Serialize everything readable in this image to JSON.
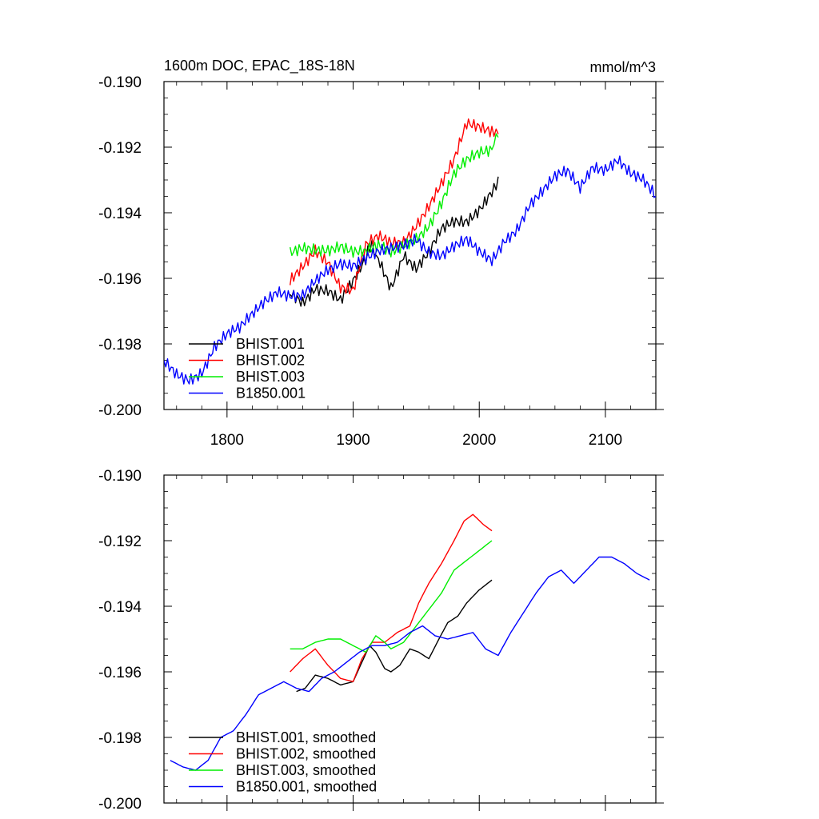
{
  "chart_data": [
    {
      "type": "line",
      "title": "1600m DOC, EPAC_18S-18N",
      "units": "mmol/m^3",
      "xlim": [
        1750,
        2140
      ],
      "ylim": [
        -0.2,
        -0.19
      ],
      "x_ticks": [
        1800,
        1900,
        2000,
        2100
      ],
      "x_tick_labels": [
        "1800",
        "1900",
        "2000",
        "2100"
      ],
      "y_ticks": [
        -0.2,
        -0.198,
        -0.196,
        -0.194,
        -0.192,
        -0.19
      ],
      "y_tick_labels": [
        "-0.200",
        "-0.198",
        "-0.196",
        "-0.194",
        "-0.192",
        "-0.190"
      ],
      "legend_position": "bottom-left",
      "series": [
        {
          "name": "BHIST.001",
          "color": "#000000",
          "x": [
            1850,
            1860,
            1870,
            1880,
            1890,
            1900,
            1910,
            1915,
            1920,
            1930,
            1940,
            1950,
            1960,
            1970,
            1980,
            1990,
            2000,
            2010,
            2015
          ],
          "y": [
            -0.1965,
            -0.1967,
            -0.1962,
            -0.1963,
            -0.1967,
            -0.1962,
            -0.1955,
            -0.1949,
            -0.1954,
            -0.1962,
            -0.1952,
            -0.1957,
            -0.1953,
            -0.1946,
            -0.1943,
            -0.1942,
            -0.1938,
            -0.1933,
            -0.1929
          ]
        },
        {
          "name": "BHIST.002",
          "color": "#ff0000",
          "x": [
            1850,
            1860,
            1870,
            1880,
            1890,
            1900,
            1910,
            1920,
            1930,
            1940,
            1950,
            1960,
            1970,
            1980,
            1990,
            2000,
            2010,
            2015
          ],
          "y": [
            -0.1962,
            -0.1957,
            -0.1951,
            -0.1954,
            -0.1962,
            -0.1964,
            -0.1951,
            -0.1948,
            -0.1949,
            -0.1948,
            -0.1943,
            -0.1938,
            -0.1932,
            -0.1925,
            -0.1913,
            -0.1913,
            -0.1914,
            -0.1916
          ]
        },
        {
          "name": "BHIST.003",
          "color": "#00ee00",
          "x": [
            1850,
            1860,
            1870,
            1880,
            1890,
            1900,
            1910,
            1920,
            1930,
            1940,
            1950,
            1960,
            1970,
            1980,
            1990,
            2000,
            2010,
            2015
          ],
          "y": [
            -0.1953,
            -0.1952,
            -0.1952,
            -0.1951,
            -0.1949,
            -0.1951,
            -0.1952,
            -0.1951,
            -0.1953,
            -0.195,
            -0.1947,
            -0.1943,
            -0.1937,
            -0.1929,
            -0.1925,
            -0.1922,
            -0.192,
            -0.1917
          ]
        },
        {
          "name": "B1850.001",
          "color": "#0000ff",
          "x": [
            1750,
            1760,
            1770,
            1780,
            1790,
            1800,
            1810,
            1820,
            1830,
            1840,
            1850,
            1860,
            1870,
            1880,
            1890,
            1900,
            1910,
            1920,
            1930,
            1940,
            1950,
            1960,
            1970,
            1980,
            1990,
            2000,
            2010,
            2020,
            2030,
            2040,
            2050,
            2060,
            2070,
            2080,
            2090,
            2100,
            2110,
            2120,
            2130,
            2140
          ],
          "y": [
            -0.1986,
            -0.1989,
            -0.199,
            -0.1988,
            -0.1981,
            -0.1978,
            -0.1976,
            -0.1971,
            -0.1966,
            -0.1963,
            -0.1965,
            -0.1966,
            -0.1962,
            -0.1958,
            -0.1955,
            -0.1955,
            -0.1953,
            -0.1952,
            -0.1952,
            -0.1951,
            -0.1948,
            -0.1951,
            -0.1952,
            -0.195,
            -0.1949,
            -0.1953,
            -0.1955,
            -0.1948,
            -0.1944,
            -0.1937,
            -0.1934,
            -0.193,
            -0.1928,
            -0.1932,
            -0.1925,
            -0.1926,
            -0.1924,
            -0.1929,
            -0.1931,
            -0.1935
          ]
        }
      ]
    },
    {
      "type": "line",
      "xlim": [
        1750,
        2140
      ],
      "ylim": [
        -0.2,
        -0.19
      ],
      "x_ticks": [
        1800,
        1900,
        2000,
        2100
      ],
      "y_ticks": [
        -0.2,
        -0.198,
        -0.196,
        -0.194,
        -0.192,
        -0.19
      ],
      "y_tick_labels": [
        "-0.200",
        "-0.198",
        "-0.196",
        "-0.194",
        "-0.192",
        "-0.190"
      ],
      "legend_position": "bottom-left",
      "series": [
        {
          "name": "BHIST.001, smoothed",
          "color": "#000000",
          "x": [
            1855,
            1862,
            1870,
            1880,
            1890,
            1900,
            1907,
            1913,
            1918,
            1925,
            1930,
            1937,
            1945,
            1952,
            1960,
            1968,
            1975,
            1983,
            1990,
            2000,
            2010
          ],
          "y": [
            -0.1966,
            -0.1965,
            -0.1961,
            -0.1962,
            -0.1964,
            -0.1963,
            -0.1957,
            -0.1952,
            -0.1954,
            -0.1959,
            -0.196,
            -0.1958,
            -0.1953,
            -0.1954,
            -0.1956,
            -0.195,
            -0.1945,
            -0.1943,
            -0.1939,
            -0.1935,
            -0.1932
          ]
        },
        {
          "name": "BHIST.002, smoothed",
          "color": "#ff0000",
          "x": [
            1850,
            1860,
            1870,
            1880,
            1890,
            1900,
            1907,
            1915,
            1925,
            1935,
            1945,
            1952,
            1960,
            1970,
            1980,
            1988,
            1995,
            2003,
            2010
          ],
          "y": [
            -0.196,
            -0.1956,
            -0.1953,
            -0.1958,
            -0.1962,
            -0.1963,
            -0.1956,
            -0.1951,
            -0.1951,
            -0.1948,
            -0.1946,
            -0.1939,
            -0.1933,
            -0.1927,
            -0.192,
            -0.1914,
            -0.1912,
            -0.1915,
            -0.1917
          ]
        },
        {
          "name": "BHIST.003, smoothed",
          "color": "#00ee00",
          "x": [
            1850,
            1860,
            1870,
            1880,
            1890,
            1900,
            1910,
            1918,
            1925,
            1930,
            1940,
            1950,
            1960,
            1970,
            1980,
            1990,
            2000,
            2010
          ],
          "y": [
            -0.1953,
            -0.1953,
            -0.1951,
            -0.195,
            -0.195,
            -0.1952,
            -0.1954,
            -0.1949,
            -0.1951,
            -0.1953,
            -0.1951,
            -0.1946,
            -0.1941,
            -0.1936,
            -0.1929,
            -0.1926,
            -0.1923,
            -0.192
          ]
        },
        {
          "name": "B1850.001, smoothed",
          "color": "#0000ff",
          "x": [
            1755,
            1765,
            1775,
            1785,
            1795,
            1805,
            1815,
            1825,
            1835,
            1845,
            1855,
            1865,
            1875,
            1885,
            1895,
            1905,
            1915,
            1925,
            1935,
            1945,
            1955,
            1965,
            1975,
            1985,
            1995,
            2005,
            2015,
            2025,
            2035,
            2045,
            2055,
            2065,
            2075,
            2085,
            2095,
            2105,
            2115,
            2125,
            2135
          ],
          "y": [
            -0.1987,
            -0.1989,
            -0.199,
            -0.1987,
            -0.198,
            -0.1978,
            -0.1973,
            -0.1967,
            -0.1965,
            -0.1963,
            -0.1965,
            -0.1966,
            -0.1962,
            -0.196,
            -0.1957,
            -0.1954,
            -0.1952,
            -0.1952,
            -0.1951,
            -0.1948,
            -0.1946,
            -0.1949,
            -0.195,
            -0.1949,
            -0.1948,
            -0.1953,
            -0.1955,
            -0.1948,
            -0.1942,
            -0.1936,
            -0.1931,
            -0.1929,
            -0.1933,
            -0.1929,
            -0.1925,
            -0.1925,
            -0.1927,
            -0.193,
            -0.1932
          ]
        }
      ]
    }
  ]
}
